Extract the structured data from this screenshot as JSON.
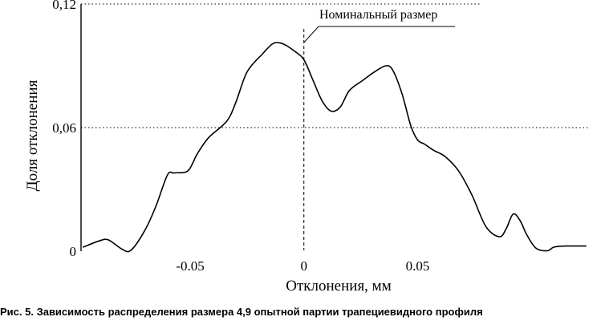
{
  "caption": "Рис. 5. Зависимость распределения размера 4,9 опытной партии трапециевидного профиля",
  "chart_data": {
    "type": "line",
    "xlabel": "Отклонения, мм",
    "ylabel": "Доля отклонения",
    "xlim": [
      -0.098,
      0.125
    ],
    "ylim": [
      0,
      0.12
    ],
    "x_ticks": [
      {
        "value": -0.05,
        "label": "-0.05"
      },
      {
        "value": 0,
        "label": "0"
      },
      {
        "value": 0.05,
        "label": "0.05"
      }
    ],
    "y_ticks": [
      {
        "value": 0,
        "label": "0"
      },
      {
        "value": 0.06,
        "label": "0,06"
      },
      {
        "value": 0.12,
        "label": "0,12"
      }
    ],
    "grid": {
      "horizontal": [
        0.06,
        0.12
      ],
      "style": "dotted"
    },
    "annotation": {
      "text": "Номинальный размер",
      "x": 0
    },
    "series": [
      {
        "x": [
          -0.097,
          -0.09,
          -0.086,
          -0.08,
          -0.076,
          -0.07,
          -0.065,
          -0.06,
          -0.057,
          -0.051,
          -0.047,
          -0.042,
          -0.034,
          -0.03,
          -0.025,
          -0.018,
          -0.014,
          -0.011,
          -0.008,
          -0.004,
          0,
          0.004,
          0.008,
          0.012,
          0.016,
          0.02,
          0.026,
          0.031,
          0.036,
          0.039,
          0.043,
          0.047,
          0.05,
          0.053,
          0.057,
          0.062,
          0.068,
          0.074,
          0.08,
          0.086,
          0.089,
          0.092,
          0.095,
          0.098,
          0.102,
          0.107,
          0.11,
          0.115,
          0.124
        ],
        "y": [
          0.002,
          0.005,
          0.0055,
          0.001,
          0.0005,
          0.01,
          0.022,
          0.037,
          0.038,
          0.039,
          0.047,
          0.055,
          0.063,
          0.072,
          0.087,
          0.096,
          0.1005,
          0.1012,
          0.1,
          0.097,
          0.093,
          0.083,
          0.073,
          0.068,
          0.07,
          0.078,
          0.083,
          0.087,
          0.09,
          0.088,
          0.077,
          0.061,
          0.054,
          0.052,
          0.049,
          0.046,
          0.039,
          0.027,
          0.012,
          0.007,
          0.011,
          0.018,
          0.015,
          0.008,
          0.0015,
          0.0002,
          0.002,
          0.0025,
          0.0025
        ]
      }
    ]
  }
}
